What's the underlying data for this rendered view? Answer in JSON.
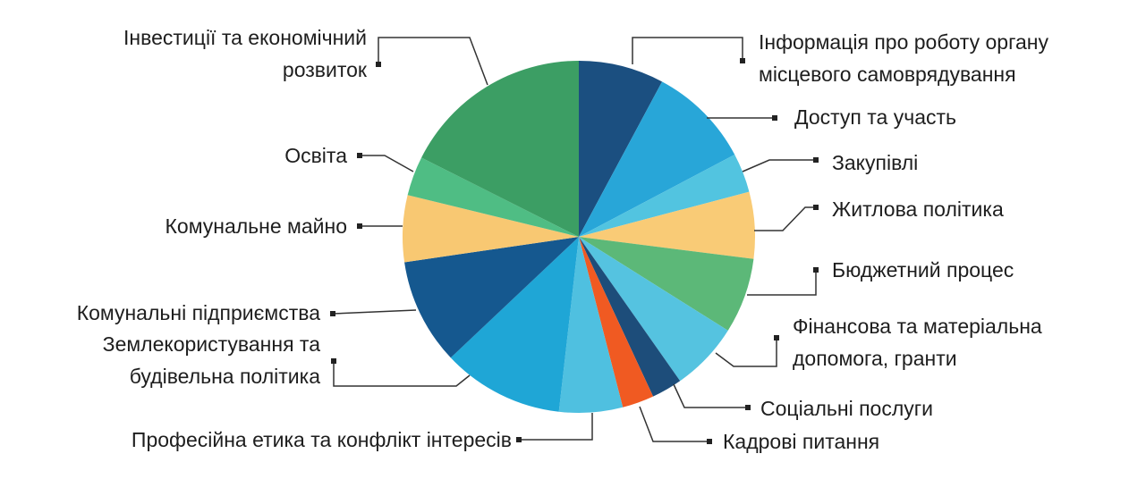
{
  "chart_data": {
    "type": "pie",
    "categories": [
      "Інформація про роботу органу\nмісцевого самоврядування",
      "Доступ та участь",
      "Закупівлі",
      "Житлова політика",
      "Бюджетний процес",
      "Фінансова та матеріальна\nдопомога, гранти",
      "Соціальні послуги",
      "Кадрові питання",
      "Професійна етика та конфлікт інтересів",
      "Землекористування та\nбудівельна політика",
      "Комунальні підприємства",
      "Комунальне майно",
      "Освіта",
      "Інвестиції та економічний\nрозвиток"
    ],
    "values": [
      7.8,
      9.4,
      3.6,
      6.1,
      6.9,
      6.3,
      2.8,
      2.9,
      5.8,
      11.1,
      9.7,
      6.1,
      3.6,
      17.5
    ],
    "colors": [
      "#1b4f80",
      "#28a6d8",
      "#52c4e0",
      "#f9cb76",
      "#5cb878",
      "#55c3e0",
      "#1d4d7a",
      "#f05a22",
      "#4fc0e0",
      "#1fa6d6",
      "#15588f",
      "#f8c872",
      "#4fbd84",
      "#3c9e64"
    ]
  }
}
